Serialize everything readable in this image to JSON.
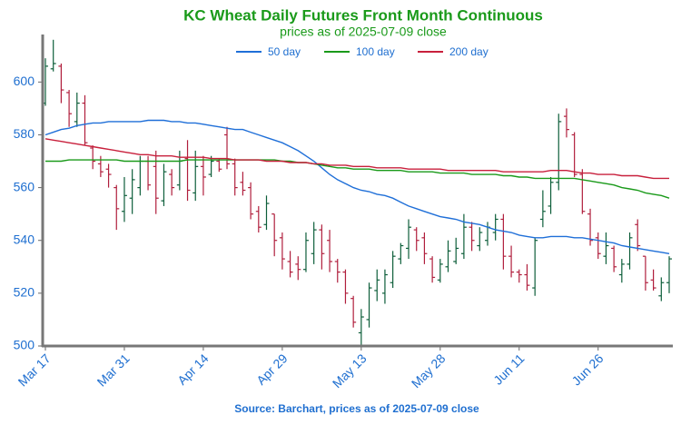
{
  "chart_data": {
    "type": "ohlc",
    "title": "KC Wheat Daily Futures Front Month Continuous",
    "subtitle": "prices as of 2025-07-09 close",
    "source": "Source: Barchart, prices as of 2025-07-09 close",
    "categories": [
      "Mar 17",
      null,
      null,
      null,
      null,
      null,
      null,
      null,
      null,
      null,
      "Mar 31",
      null,
      null,
      null,
      null,
      null,
      null,
      null,
      null,
      null,
      "Apr 14",
      null,
      null,
      null,
      null,
      null,
      null,
      null,
      null,
      null,
      "Apr 29",
      null,
      null,
      null,
      null,
      null,
      null,
      null,
      null,
      null,
      "May 13",
      null,
      null,
      null,
      null,
      null,
      null,
      null,
      null,
      null,
      "May 28",
      null,
      null,
      null,
      null,
      null,
      null,
      null,
      null,
      null,
      "Jun 11",
      null,
      null,
      null,
      null,
      null,
      null,
      null,
      null,
      null,
      "Jun 26",
      null,
      null,
      null,
      null,
      null,
      null,
      null,
      null,
      null
    ],
    "open": [
      592,
      605,
      606,
      596,
      585,
      592,
      575,
      569,
      567,
      560,
      551,
      556,
      560,
      570,
      568,
      555,
      565,
      561,
      571,
      558,
      568,
      565,
      570,
      580,
      569,
      562,
      560,
      551,
      546,
      550,
      541,
      532,
      531,
      529,
      535,
      544,
      540,
      532,
      528,
      518,
      505,
      510,
      521,
      520,
      524,
      533,
      537,
      544,
      541,
      533,
      525,
      530,
      532,
      535,
      545,
      538,
      540,
      543,
      548,
      534,
      528,
      527,
      522,
      548,
      553,
      562,
      587,
      580,
      565,
      550,
      541,
      534,
      537,
      527,
      531,
      546,
      534,
      525,
      519,
      524
    ],
    "high": [
      609,
      616,
      607,
      597,
      596,
      595,
      576,
      572,
      569,
      561,
      564,
      567,
      572,
      572,
      574,
      569,
      567,
      574,
      578,
      574,
      572,
      572,
      571,
      583,
      571,
      566,
      562,
      553,
      557,
      550,
      543,
      536,
      534,
      543,
      547,
      546,
      544,
      533,
      529,
      519,
      514,
      524,
      529,
      529,
      536,
      539,
      548,
      545,
      543,
      534,
      533,
      540,
      541,
      550,
      547,
      545,
      547,
      550,
      550,
      538,
      529,
      531,
      541,
      559,
      564,
      588,
      590,
      581,
      567,
      552,
      543,
      543,
      538,
      533,
      543,
      548,
      534,
      529,
      526,
      534
    ],
    "low": [
      591,
      604,
      592,
      583,
      583,
      576,
      567,
      564,
      560,
      544,
      547,
      550,
      557,
      559,
      550,
      553,
      557,
      559,
      555,
      555,
      557,
      564,
      566,
      567,
      557,
      557,
      548,
      543,
      544,
      534,
      529,
      526,
      525,
      528,
      531,
      529,
      528,
      524,
      516,
      507,
      500,
      507,
      517,
      516,
      522,
      531,
      533,
      536,
      531,
      524,
      524,
      528,
      531,
      533,
      536,
      536,
      538,
      540,
      529,
      526,
      524,
      521,
      519,
      545,
      550,
      559,
      579,
      564,
      550,
      538,
      533,
      531,
      528,
      524,
      529,
      536,
      521,
      521,
      517,
      520
    ],
    "close": [
      606,
      607,
      597,
      588,
      592,
      577,
      570,
      566,
      565,
      552,
      557,
      563,
      570,
      561,
      556,
      566,
      560,
      570,
      559,
      568,
      564,
      570,
      567,
      569,
      560,
      559,
      550,
      545,
      554,
      540,
      533,
      528,
      529,
      540,
      544,
      535,
      532,
      528,
      520,
      509,
      511,
      522,
      525,
      527,
      534,
      538,
      545,
      540,
      535,
      526,
      531,
      536,
      537,
      545,
      540,
      543,
      545,
      548,
      534,
      528,
      527,
      523,
      540,
      551,
      562,
      585,
      582,
      565,
      551,
      540,
      535,
      538,
      530,
      531,
      541,
      538,
      524,
      522,
      524,
      533
    ],
    "up_color": "#0d5e3a",
    "down_color": "#b01e3c",
    "series": [
      {
        "name": "50 day",
        "color": "#1f6fd8",
        "values": [
          580,
          581,
          582,
          582.5,
          583.5,
          584,
          584.5,
          584.5,
          585,
          585,
          585,
          585,
          585,
          585.5,
          585.5,
          585.5,
          585,
          585,
          584.5,
          584.5,
          584,
          583.5,
          583,
          582.5,
          582,
          582,
          581,
          580,
          579,
          578,
          577,
          575.5,
          574,
          572,
          570,
          567.5,
          565,
          563,
          561.5,
          560,
          559,
          558.5,
          557.5,
          557,
          556,
          554.5,
          553,
          552,
          551,
          550,
          549,
          548.5,
          548,
          547,
          546.5,
          546,
          545,
          544,
          543.5,
          543,
          542,
          541.5,
          541,
          541,
          541.5,
          541.5,
          541.5,
          541,
          541,
          540.5,
          540,
          539.5,
          539,
          538,
          537.5,
          537,
          536.5,
          536,
          535.5,
          535
        ]
      },
      {
        "name": "100 day",
        "color": "#1a9a1a",
        "values": [
          570,
          570,
          570,
          570.5,
          570.5,
          570.5,
          570.5,
          570.5,
          570.5,
          570.5,
          570,
          570,
          570,
          570,
          570,
          570,
          570,
          570,
          570.5,
          570.5,
          570.5,
          570.5,
          570.5,
          570.5,
          570.5,
          570.5,
          570.5,
          570.5,
          570.5,
          570.5,
          570,
          570,
          569.5,
          569.5,
          569,
          568.5,
          568,
          567.5,
          567.5,
          567,
          567,
          567,
          566.5,
          566.5,
          566.5,
          566.5,
          566,
          566,
          566,
          566,
          565.5,
          565.5,
          565.5,
          565.5,
          565,
          565,
          565,
          565,
          564.5,
          564.5,
          564,
          564,
          563.5,
          563.5,
          563.5,
          563.5,
          563.5,
          563.5,
          563,
          562.5,
          562,
          561.5,
          561,
          560,
          559.5,
          559,
          558,
          557.5,
          557,
          556
        ]
      },
      {
        "name": "200 day",
        "color": "#c8203c",
        "values": [
          578.5,
          578,
          577.5,
          577,
          576.5,
          576,
          575.5,
          575,
          574.5,
          574,
          573.5,
          573,
          572.5,
          572.5,
          572,
          572,
          572,
          571.5,
          571.5,
          571.5,
          571.5,
          571,
          571,
          571,
          570.5,
          570.5,
          570.5,
          570.5,
          570,
          570,
          570,
          569.5,
          569.5,
          569.5,
          569,
          569,
          568.5,
          568.5,
          568.5,
          568,
          568,
          568,
          567.5,
          567.5,
          567.5,
          567.5,
          567,
          567,
          567,
          567,
          567,
          566.5,
          566.5,
          566.5,
          566.5,
          566.5,
          566.5,
          566.5,
          566,
          566,
          566,
          566,
          566,
          566,
          566.5,
          566.5,
          566.5,
          566,
          565.5,
          565.5,
          565,
          565,
          565,
          564.5,
          564.5,
          564.5,
          564,
          563.5,
          563.5,
          563.5
        ]
      }
    ],
    "ylim": [
      500,
      618
    ],
    "yticks": [
      500,
      520,
      540,
      560,
      580,
      600
    ],
    "legend": "top"
  }
}
